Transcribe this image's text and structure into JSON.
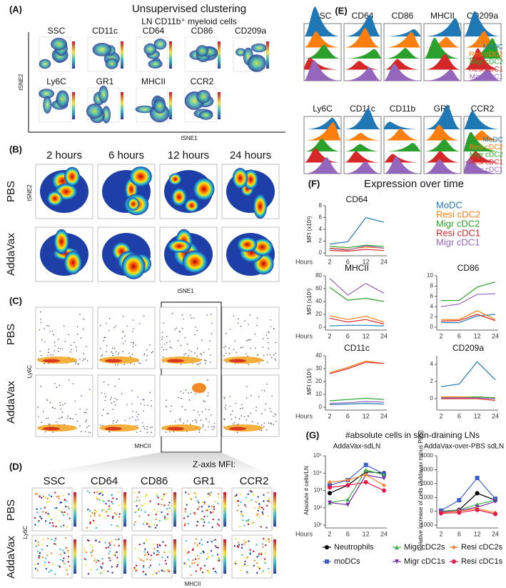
{
  "panels": {
    "A": {
      "label": "(A)",
      "title": "Unsupervised clustering",
      "subtitle": "LN CD11b⁺ myeloid cells",
      "markers": [
        "SSC",
        "CD11c",
        "CD64",
        "CD86",
        "CD209a",
        "Ly6C",
        "GR1",
        "MHCII",
        "CCR2"
      ],
      "xaxis": "tSNE1",
      "yaxis": "tSNE2"
    },
    "B": {
      "label": "(B)",
      "times": [
        "2 hours",
        "6 hours",
        "12 hours",
        "24 hours"
      ],
      "rows": [
        "PBS",
        "AddaVax"
      ],
      "xaxis": "tSNE1",
      "yaxis": "tSNE2"
    },
    "C": {
      "label": "(C)",
      "rows": [
        "PBS",
        "AddaVax"
      ],
      "xaxis": "MHCII",
      "yaxis": "Ly6C"
    },
    "D": {
      "label": "(D)",
      "note": "Z-axis MFI:",
      "markers": [
        "SSC",
        "CD64",
        "CD86",
        "GR1",
        "CCR2"
      ],
      "rows": [
        "PBS",
        "AddaVax"
      ],
      "xaxis": "MHCII",
      "yaxis": "Ly6C"
    },
    "E": {
      "label": "(E)",
      "markers": [
        "SSC",
        "CD64",
        "CD86",
        "MHCII",
        "CD209a",
        "Ly6C",
        "CD11c",
        "CD11b",
        "GR1",
        "CCR2"
      ],
      "legend": [
        "MoDC",
        "Resi cDC2",
        "Migr cDC2",
        "Resi cDC1",
        "Migr cDC1"
      ],
      "colors": [
        "#1f77b4",
        "#ff7f0e",
        "#2ca02c",
        "#d62728",
        "#9467bd"
      ]
    },
    "F": {
      "label": "(F)",
      "title": "Expression over time"
    },
    "G": {
      "label": "(G)",
      "title": "#absolute cells in skin-draining LNs"
    }
  },
  "chart_data": [
    {
      "type": "line",
      "title": "CD64",
      "categories": [
        "2",
        "6",
        "12",
        "24"
      ],
      "ylabel": "MFI (x10³)",
      "xlabel": "Hours",
      "ylim": [
        0,
        8
      ],
      "yticks": [
        0,
        2,
        4,
        6,
        8
      ],
      "series": [
        {
          "name": "MoDC",
          "color": "#1f77b4",
          "values": [
            1.5,
            1.9,
            6,
            5.2
          ]
        },
        {
          "name": "Resi cDC2",
          "color": "#ff7f0e",
          "values": [
            0.8,
            0.6,
            1.0,
            0.8
          ]
        },
        {
          "name": "Migr cDC2",
          "color": "#2ca02c",
          "values": [
            1.1,
            0.9,
            1.3,
            1.1
          ]
        },
        {
          "name": "Resi cDC1",
          "color": "#d62728",
          "values": [
            0.4,
            0.3,
            0.6,
            0.4
          ]
        },
        {
          "name": "Migr cDC1",
          "color": "#9467bd",
          "values": [
            0.7,
            0.5,
            1.2,
            0.8
          ]
        }
      ]
    },
    {
      "type": "line",
      "title": "MHCII",
      "categories": [
        "2",
        "6",
        "12",
        "24"
      ],
      "ylabel": "MFI (x10³)",
      "xlabel": "Hours",
      "ylim": [
        0,
        80
      ],
      "yticks": [
        0,
        20,
        40,
        60,
        80
      ],
      "series": [
        {
          "name": "MoDC",
          "color": "#1f77b4",
          "values": [
            2,
            3,
            3,
            2
          ]
        },
        {
          "name": "Resi cDC2",
          "color": "#ff7f0e",
          "values": [
            18,
            12,
            17,
            8
          ]
        },
        {
          "name": "Migr cDC2",
          "color": "#2ca02c",
          "values": [
            62,
            42,
            45,
            40
          ]
        },
        {
          "name": "Resi cDC1",
          "color": "#d62728",
          "values": [
            14,
            8,
            12,
            5
          ]
        },
        {
          "name": "Migr cDC1",
          "color": "#9467bd",
          "values": [
            76,
            50,
            68,
            53
          ]
        }
      ]
    },
    {
      "type": "line",
      "title": "CD86",
      "categories": [
        "2",
        "6",
        "12",
        "24"
      ],
      "ylim": [
        0,
        10
      ],
      "yticks": [
        0,
        2,
        4,
        6,
        8,
        10
      ],
      "series": [
        {
          "name": "MoDC",
          "color": "#1f77b4",
          "values": [
            0.9,
            0.9,
            2.2,
            2.5
          ]
        },
        {
          "name": "Resi cDC2",
          "color": "#ff7f0e",
          "values": [
            1.5,
            1.5,
            3.2,
            1.5
          ]
        },
        {
          "name": "Migr cDC2",
          "color": "#2ca02c",
          "values": [
            5.2,
            5.2,
            7.8,
            8.8
          ]
        },
        {
          "name": "Resi cDC1",
          "color": "#d62728",
          "values": [
            1.2,
            1.3,
            2.5,
            1.3
          ]
        },
        {
          "name": "Migr cDC1",
          "color": "#9467bd",
          "values": [
            4,
            4.5,
            6.4,
            6.5
          ]
        }
      ]
    },
    {
      "type": "line",
      "title": "CD11c",
      "categories": [
        "2",
        "6",
        "12",
        "24"
      ],
      "ylabel": "MFI (x10³)",
      "xlabel": "Hours",
      "ylim": [
        0,
        40
      ],
      "yticks": [
        0,
        10,
        20,
        30,
        40
      ],
      "series": [
        {
          "name": "MoDC",
          "color": "#1f77b4",
          "values": [
            2,
            2.5,
            3,
            2.5
          ]
        },
        {
          "name": "Resi cDC2",
          "color": "#ff7f0e",
          "values": [
            27,
            31,
            36,
            34
          ]
        },
        {
          "name": "Migr cDC2",
          "color": "#2ca02c",
          "values": [
            5,
            6,
            7,
            6
          ]
        },
        {
          "name": "Resi cDC1",
          "color": "#d62728",
          "values": [
            26,
            30,
            35,
            34
          ]
        },
        {
          "name": "Migr cDC1",
          "color": "#9467bd",
          "values": [
            3,
            3.5,
            4.5,
            4
          ]
        }
      ]
    },
    {
      "type": "line",
      "title": "CD209a",
      "categories": [
        "2",
        "6",
        "12",
        "24"
      ],
      "ylim": [
        -1,
        5
      ],
      "yticks": [
        0,
        2,
        4
      ],
      "series": [
        {
          "name": "MoDC",
          "color": "#1f77b4",
          "values": [
            1.4,
            1.7,
            4.3,
            2.2
          ]
        },
        {
          "name": "Resi cDC2",
          "color": "#ff7f0e",
          "values": [
            0.2,
            0.2,
            0.2,
            0.1
          ]
        },
        {
          "name": "Migr cDC2",
          "color": "#2ca02c",
          "values": [
            0.1,
            0.1,
            0.2,
            0.1
          ]
        },
        {
          "name": "Resi cDC1",
          "color": "#d62728",
          "values": [
            0,
            0,
            0,
            -0.2
          ]
        },
        {
          "name": "Migr cDC1",
          "color": "#9467bd",
          "values": [
            0.1,
            0.1,
            0.1,
            0
          ]
        }
      ]
    },
    {
      "type": "line",
      "title": "AddaVax-sdLN",
      "categories": [
        "2",
        "6",
        "12",
        "24"
      ],
      "ylabel": "Absolute # cells/LN",
      "xlabel": "Hours",
      "log": true,
      "ylim": [
        10,
        100000
      ],
      "yticks": [
        {
          "value": 10,
          "label": "10¹"
        },
        {
          "value": 100,
          "label": "10²"
        },
        {
          "value": 1000,
          "label": "10³"
        },
        {
          "value": 10000,
          "label": "10⁴"
        },
        {
          "value": 100000,
          "label": "10⁵"
        }
      ],
      "series": [
        {
          "name": "Neutrophils",
          "color": "#000000",
          "marker": "circle",
          "values": [
            700,
            2000,
            12000,
            10000
          ]
        },
        {
          "name": "moDCs",
          "color": "#3a5fcd",
          "marker": "square",
          "values": [
            2000,
            4000,
            30000,
            9000
          ]
        },
        {
          "name": "Migr cDC2s",
          "color": "#3cb44b",
          "marker": "triangle-up",
          "values": [
            200,
            300,
            15000,
            8000
          ]
        },
        {
          "name": "Migr cDC1s",
          "color": "#7b2fa8",
          "marker": "triangle-down",
          "values": [
            200,
            150,
            8000,
            5000
          ]
        },
        {
          "name": "Resi cDC2s",
          "color": "#f58231",
          "marker": "diamond",
          "values": [
            3000,
            4000,
            8000,
            2000
          ]
        },
        {
          "name": "Resi cDC1s",
          "color": "#e6194b",
          "marker": "circle",
          "values": [
            1500,
            2000,
            3000,
            1000
          ]
        }
      ]
    },
    {
      "type": "line",
      "title": "AddaVax-over-PBS sdLN",
      "categories": [
        "2",
        "6",
        "12",
        "24"
      ],
      "ylabel": "Relative increase of cells (Addavax minus PBS)",
      "ylim": [
        -1000,
        4000
      ],
      "yticks": [
        -1000,
        0,
        1000,
        2000,
        3000,
        4000
      ],
      "series": [
        {
          "name": "Neutrophils",
          "color": "#000000",
          "marker": "circle",
          "values": [
            0,
            100,
            1300,
            800
          ]
        },
        {
          "name": "moDCs",
          "color": "#3a5fcd",
          "marker": "square",
          "values": [
            50,
            800,
            2400,
            900
          ]
        },
        {
          "name": "Migr cDC2s",
          "color": "#3cb44b",
          "marker": "triangle-up",
          "values": [
            0,
            100,
            500,
            800
          ]
        },
        {
          "name": "Migr cDC1s",
          "color": "#7b2fa8",
          "marker": "triangle-down",
          "values": [
            -50,
            50,
            300,
            700
          ]
        },
        {
          "name": "Resi cDC2s",
          "color": "#f58231",
          "marker": "diamond",
          "values": [
            -100,
            0,
            200,
            -100
          ]
        },
        {
          "name": "Resi cDC1s",
          "color": "#e6194b",
          "marker": "circle",
          "values": [
            -150,
            -100,
            100,
            -200
          ]
        }
      ]
    }
  ]
}
